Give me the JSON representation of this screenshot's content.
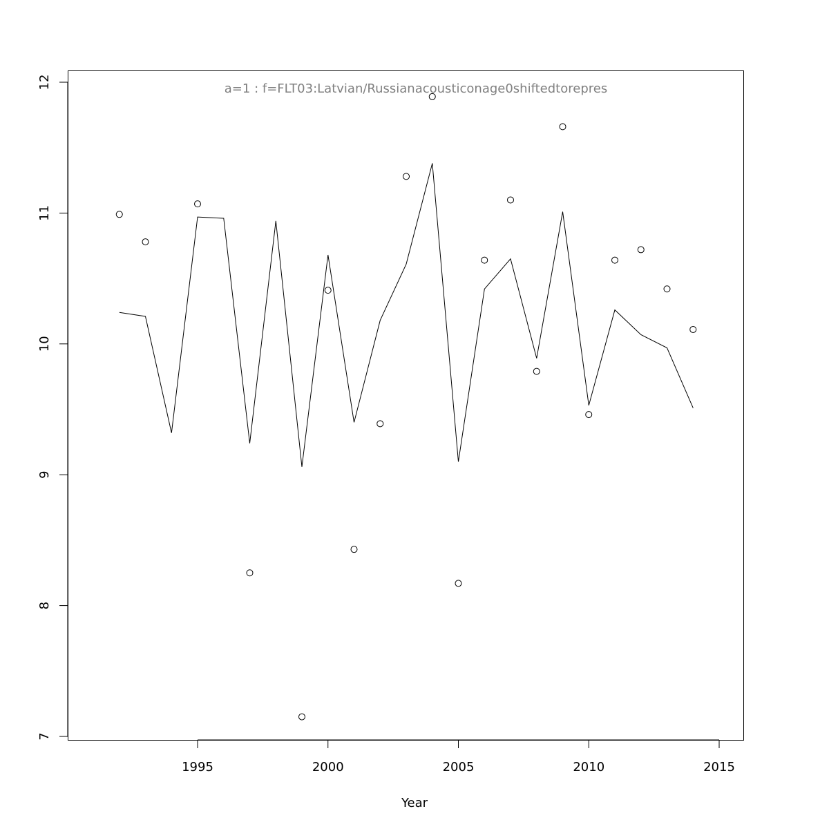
{
  "chart_data": {
    "type": "line",
    "title": "a=1  :  f=FLT03:Latvian/Russianacousticonage0shiftedtorepres",
    "xlabel": "Year",
    "ylabel": "",
    "xlim": [
      1990,
      2016
    ],
    "ylim": [
      7,
      12
    ],
    "x_ticks": [
      1995,
      2000,
      2005,
      2010,
      2015
    ],
    "y_ticks": [
      7,
      8,
      9,
      10,
      11,
      12
    ],
    "grid": false,
    "series": [
      {
        "style": "points",
        "x": [
          1992,
          1993,
          1995,
          1997,
          1999,
          2000,
          2001,
          2002,
          2003,
          2004,
          2005,
          2006,
          2007,
          2008,
          2009,
          2010,
          2011,
          2012,
          2013,
          2014
        ],
        "y": [
          10.99,
          10.78,
          11.07,
          8.25,
          7.15,
          10.41,
          8.43,
          9.39,
          11.28,
          11.89,
          8.17,
          10.64,
          11.1,
          9.79,
          11.66,
          9.46,
          10.64,
          10.72,
          10.42,
          10.11
        ]
      },
      {
        "style": "line",
        "x": [
          1992,
          1993,
          1994,
          1995,
          1996,
          1997,
          1998,
          1999,
          2000,
          2001,
          2002,
          2003,
          2004,
          2005,
          2006,
          2007,
          2008,
          2009,
          2010,
          2011,
          2012,
          2013,
          2014
        ],
        "y": [
          10.24,
          10.21,
          9.32,
          10.97,
          10.96,
          9.24,
          10.94,
          9.06,
          10.68,
          9.4,
          10.18,
          10.61,
          11.38,
          9.1,
          10.42,
          10.65,
          9.89,
          11.01,
          9.53,
          10.26,
          10.07,
          9.97,
          9.51
        ]
      }
    ]
  }
}
